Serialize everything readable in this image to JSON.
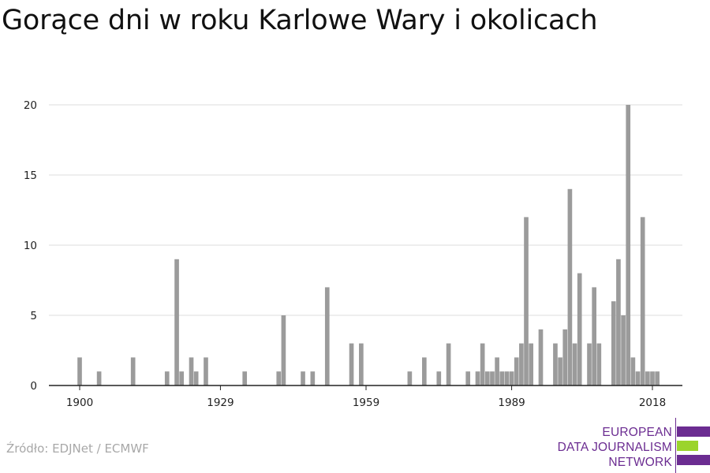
{
  "title": "Gorące dni w roku Karlowe Wary i okolicach",
  "source": "Źródło: EDJNet / ECMWF",
  "logo": {
    "line1": "EUROPEAN",
    "line2": "DATA JOURNALISM",
    "line3": "NETWORK",
    "purple": "#6b2c91",
    "green": "#9bd42c"
  },
  "colors": {
    "bar": "#9b9b9b",
    "grid": "#dddddd",
    "axis": "#222222"
  },
  "chart_data": {
    "type": "bar",
    "title": "Gorące dni w roku Karlowe Wary i okolicach",
    "xlabel": "",
    "ylabel": "",
    "xlim": [
      1894,
      2024
    ],
    "ylim": [
      0,
      20
    ],
    "yticks": [
      0,
      5,
      10,
      15,
      20
    ],
    "xticks": [
      1900,
      1929,
      1959,
      1989,
      2018
    ],
    "grid": true,
    "years": [
      1900,
      1904,
      1911,
      1918,
      1920,
      1921,
      1923,
      1924,
      1926,
      1934,
      1941,
      1942,
      1946,
      1948,
      1951,
      1956,
      1958,
      1968,
      1971,
      1974,
      1976,
      1980,
      1982,
      1983,
      1984,
      1985,
      1986,
      1987,
      1988,
      1989,
      1990,
      1991,
      1992,
      1993,
      1995,
      1998,
      1999,
      2000,
      2001,
      2002,
      2003,
      2005,
      2006,
      2007,
      2010,
      2011,
      2012,
      2013,
      2014,
      2015,
      2016,
      2017,
      2018,
      2019
    ],
    "values": [
      2,
      1,
      2,
      1,
      9,
      1,
      2,
      1,
      2,
      1,
      1,
      5,
      1,
      1,
      7,
      3,
      3,
      1,
      2,
      1,
      3,
      1,
      1,
      3,
      1,
      1,
      2,
      1,
      1,
      1,
      2,
      3,
      12,
      3,
      4,
      3,
      2,
      4,
      14,
      3,
      8,
      3,
      7,
      3,
      6,
      9,
      5,
      20,
      2,
      1,
      12,
      1,
      1,
      1
    ]
  }
}
